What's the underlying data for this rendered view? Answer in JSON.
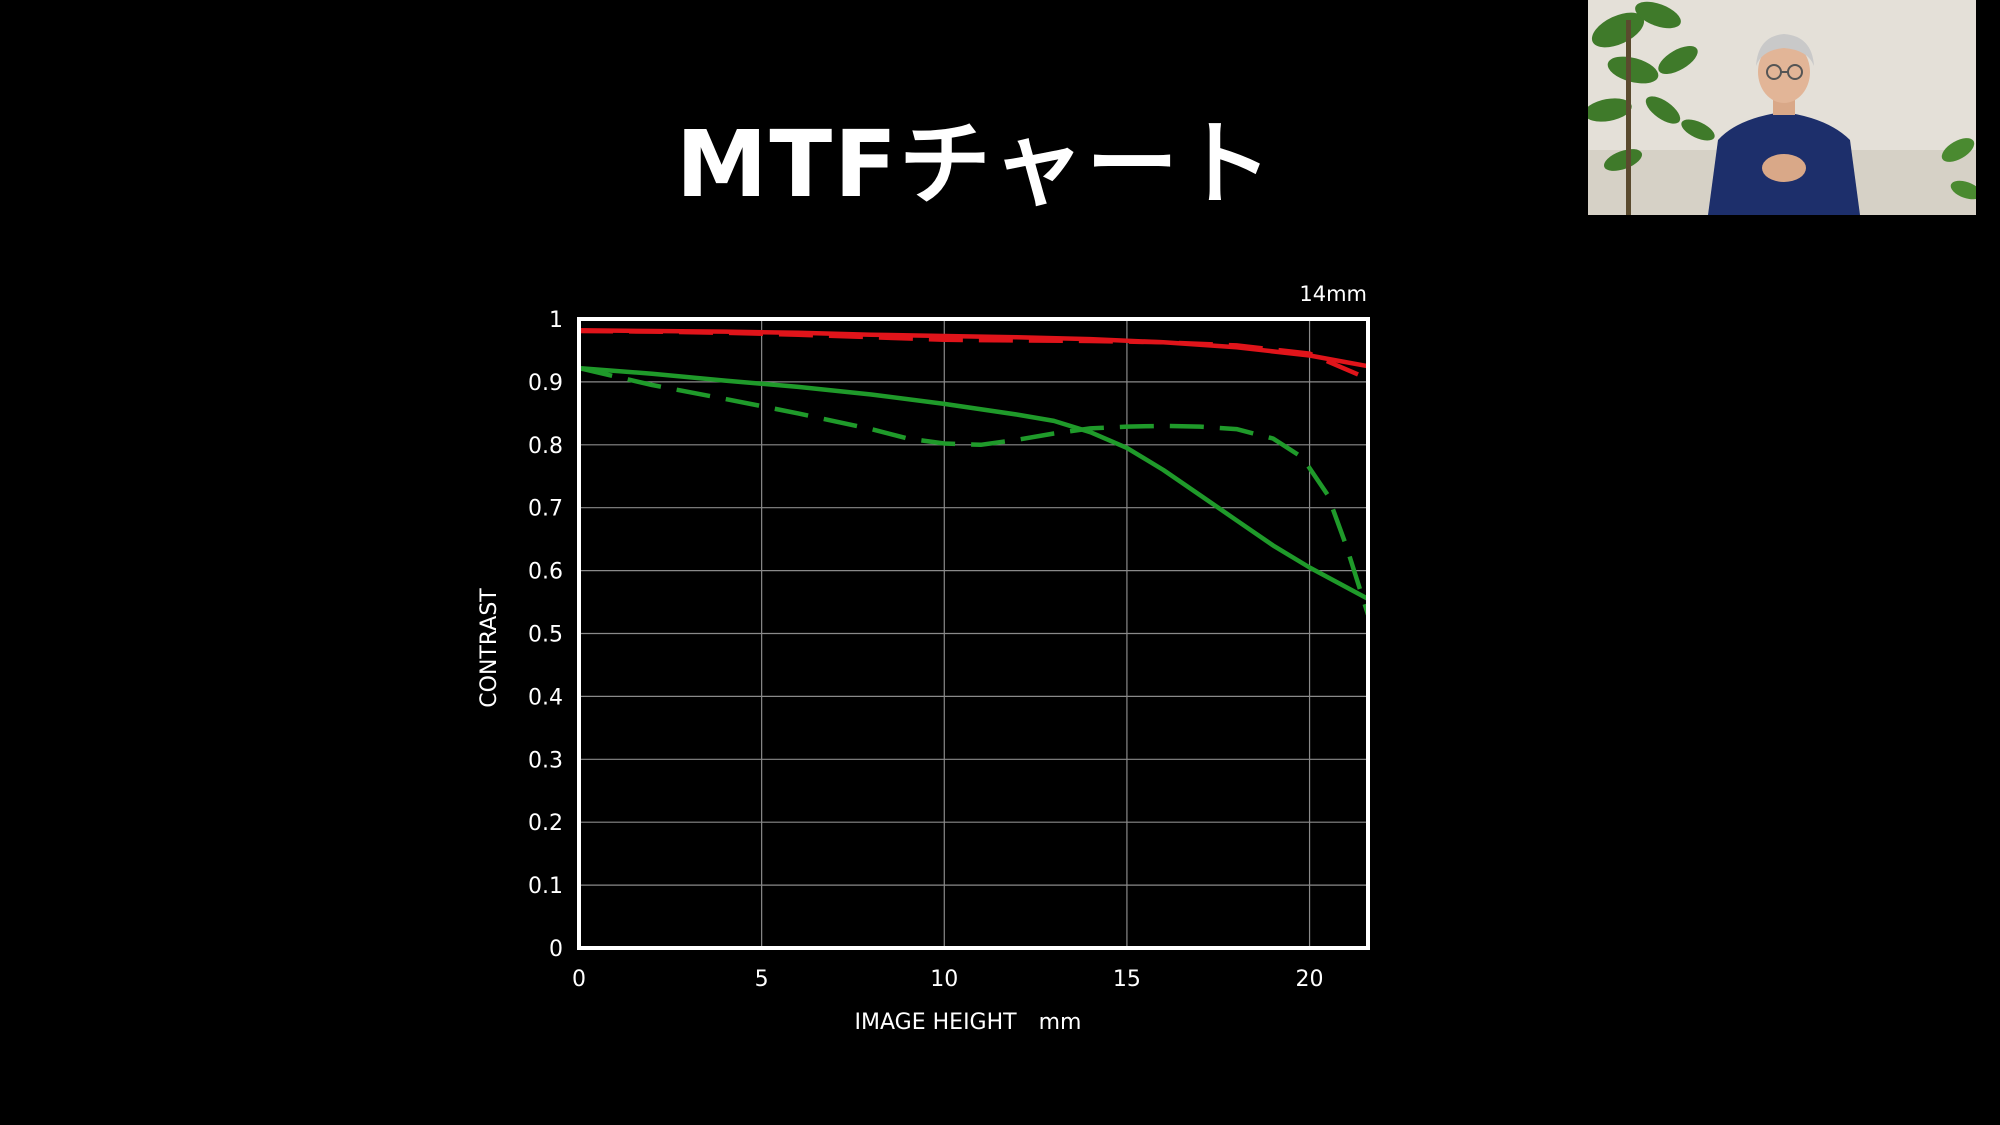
{
  "slide": {
    "title": "MTFチャート"
  },
  "chart_data": {
    "type": "line",
    "title": "",
    "annotation": "14mm",
    "xlabel": "IMAGE HEIGHT　mm",
    "ylabel": "CONTRAST",
    "xlim": [
      0,
      21.6
    ],
    "ylim": [
      0,
      1
    ],
    "x_ticks": [
      0,
      5,
      10,
      15,
      20
    ],
    "y_ticks": [
      0,
      0.1,
      0.2,
      0.3,
      0.4,
      0.5,
      0.6,
      0.7,
      0.8,
      0.9,
      1
    ],
    "y_tick_labels": [
      "0",
      "0.1",
      "0.2",
      "0.3",
      "0.4",
      "0.5",
      "0.6",
      "0.7",
      "0.8",
      "0.9",
      "1"
    ],
    "grid": true,
    "series": [
      {
        "color": "#e0141a",
        "dashed": false,
        "x": [
          0,
          2,
          4,
          6,
          8,
          10,
          12,
          14,
          16,
          18,
          20,
          21.6
        ],
        "y": [
          0.982,
          0.981,
          0.98,
          0.978,
          0.975,
          0.973,
          0.971,
          0.968,
          0.963,
          0.955,
          0.942,
          0.925
        ]
      },
      {
        "color": "#e0141a",
        "dashed": true,
        "x": [
          0,
          2,
          4,
          6,
          8,
          10,
          12,
          14,
          16,
          18,
          20,
          21.6
        ],
        "y": [
          0.981,
          0.98,
          0.978,
          0.975,
          0.971,
          0.967,
          0.966,
          0.965,
          0.963,
          0.958,
          0.945,
          0.905
        ]
      },
      {
        "color": "#1f9a2a",
        "dashed": false,
        "x": [
          0,
          2,
          4,
          6,
          8,
          10,
          12,
          13,
          14,
          15,
          16,
          17,
          18,
          19,
          20,
          21.6
        ],
        "y": [
          0.922,
          0.913,
          0.902,
          0.892,
          0.88,
          0.865,
          0.848,
          0.838,
          0.82,
          0.795,
          0.76,
          0.72,
          0.68,
          0.64,
          0.605,
          0.555
        ]
      },
      {
        "color": "#1f9a2a",
        "dashed": true,
        "x": [
          0,
          2,
          4,
          6,
          8,
          9,
          10,
          11,
          12,
          13,
          14,
          15,
          16,
          17,
          18,
          19,
          19.8,
          20.5,
          21,
          21.6
        ],
        "y": [
          0.922,
          0.895,
          0.873,
          0.85,
          0.825,
          0.81,
          0.802,
          0.8,
          0.808,
          0.818,
          0.826,
          0.829,
          0.83,
          0.829,
          0.825,
          0.81,
          0.78,
          0.72,
          0.64,
          0.53
        ]
      }
    ]
  },
  "webcam": {
    "description_icon": "presenter-video-icon"
  }
}
